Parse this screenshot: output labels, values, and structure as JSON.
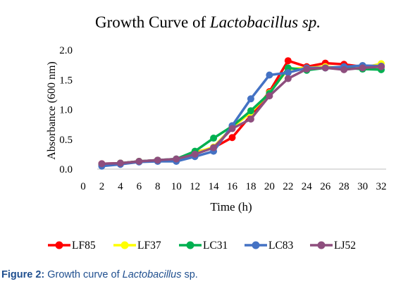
{
  "chart_data": {
    "type": "line",
    "title": "Growth Curve of ",
    "title_italic": "Lactobacillus sp.",
    "xlabel": "Time (h)",
    "ylabel": "Absorbance (600 nm)",
    "xlim": [
      0,
      32
    ],
    "ylim": [
      0,
      2
    ],
    "x_ticks": [
      0,
      2,
      4,
      6,
      8,
      10,
      12,
      14,
      16,
      18,
      20,
      22,
      24,
      26,
      28,
      30,
      32
    ],
    "y_ticks": [
      0,
      0.5,
      1,
      1.5,
      2
    ],
    "y_tick_labels": [
      "0.0",
      "0.5",
      "1.0",
      "1.5",
      "2.0"
    ],
    "x": [
      2,
      4,
      6,
      8,
      10,
      12,
      14,
      16,
      18,
      20,
      22,
      24,
      26,
      28,
      30,
      32
    ],
    "grid": false,
    "legend_position": "bottom",
    "series": [
      {
        "name": "LF85",
        "color": "#ff0000",
        "values": [
          0.09,
          0.1,
          0.13,
          0.15,
          0.16,
          0.28,
          0.36,
          0.53,
          0.9,
          1.3,
          1.82,
          1.72,
          1.78,
          1.76,
          1.72,
          1.72
        ]
      },
      {
        "name": "LF37",
        "color": "#ffff00",
        "values": [
          0.08,
          0.1,
          0.13,
          0.14,
          0.16,
          0.27,
          0.37,
          0.7,
          0.95,
          1.28,
          1.68,
          1.7,
          1.72,
          1.7,
          1.7,
          1.77
        ]
      },
      {
        "name": "LC31",
        "color": "#00b050",
        "values": [
          0.08,
          0.1,
          0.13,
          0.15,
          0.17,
          0.3,
          0.52,
          0.72,
          0.98,
          1.27,
          1.7,
          1.66,
          1.7,
          1.7,
          1.68,
          1.67
        ]
      },
      {
        "name": "LC83",
        "color": "#4472c4",
        "values": [
          0.05,
          0.08,
          0.12,
          0.13,
          0.13,
          0.21,
          0.3,
          0.73,
          1.18,
          1.58,
          1.62,
          1.7,
          1.7,
          1.72,
          1.74,
          1.73
        ]
      },
      {
        "name": "LJ52",
        "color": "#8e4e7e",
        "values": [
          0.09,
          0.1,
          0.13,
          0.15,
          0.17,
          0.25,
          0.36,
          0.68,
          0.84,
          1.23,
          1.52,
          1.68,
          1.7,
          1.67,
          1.7,
          1.72
        ]
      }
    ]
  },
  "caption": {
    "label": "Figure 2:",
    "text_before": " Growth curve of ",
    "text_italic": "Lactobacillus",
    "text_after": " sp."
  }
}
